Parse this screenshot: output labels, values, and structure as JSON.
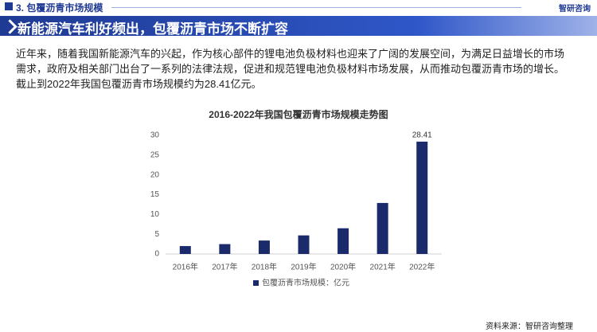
{
  "header": {
    "title": "3. 包覆沥青市场规模",
    "logo": "智研咨询"
  },
  "banner": "新能源汽车利好频出，包覆沥青市场不断扩容",
  "paragraph": [
    "近年来，随着我国新能源汽车的兴起，作为核心部件的锂电池负极材料也迎来了广阔的发展空间，为满足日益增长的市场",
    "需求，政府及相关部门出台了一系列的法律法规，促进和规范锂电池负极材料市场发展，从而推动包覆沥青市场的增长。",
    "截止到2022年我国包覆沥青市场规模约为28.41亿元。"
  ],
  "source": "资料来源：智研咨询整理",
  "chart_data": {
    "type": "bar",
    "title": "2016-2022年我国包覆沥青市场规模走势图",
    "categories": [
      "2016年",
      "2017年",
      "2018年",
      "2019年",
      "2020年",
      "2021年",
      "2022年"
    ],
    "series": [
      {
        "name": "包覆沥青市场规模：亿元",
        "color": "#1b2a6b",
        "values": [
          2.0,
          2.5,
          3.4,
          4.7,
          6.5,
          12.9,
          28.41
        ],
        "value_labels": [
          null,
          null,
          null,
          null,
          null,
          null,
          "28.41"
        ]
      }
    ],
    "ylim": [
      0,
      30
    ],
    "yticks": [
      0,
      5,
      10,
      15,
      20,
      25,
      30
    ],
    "grid": false,
    "legend": "bottom"
  }
}
